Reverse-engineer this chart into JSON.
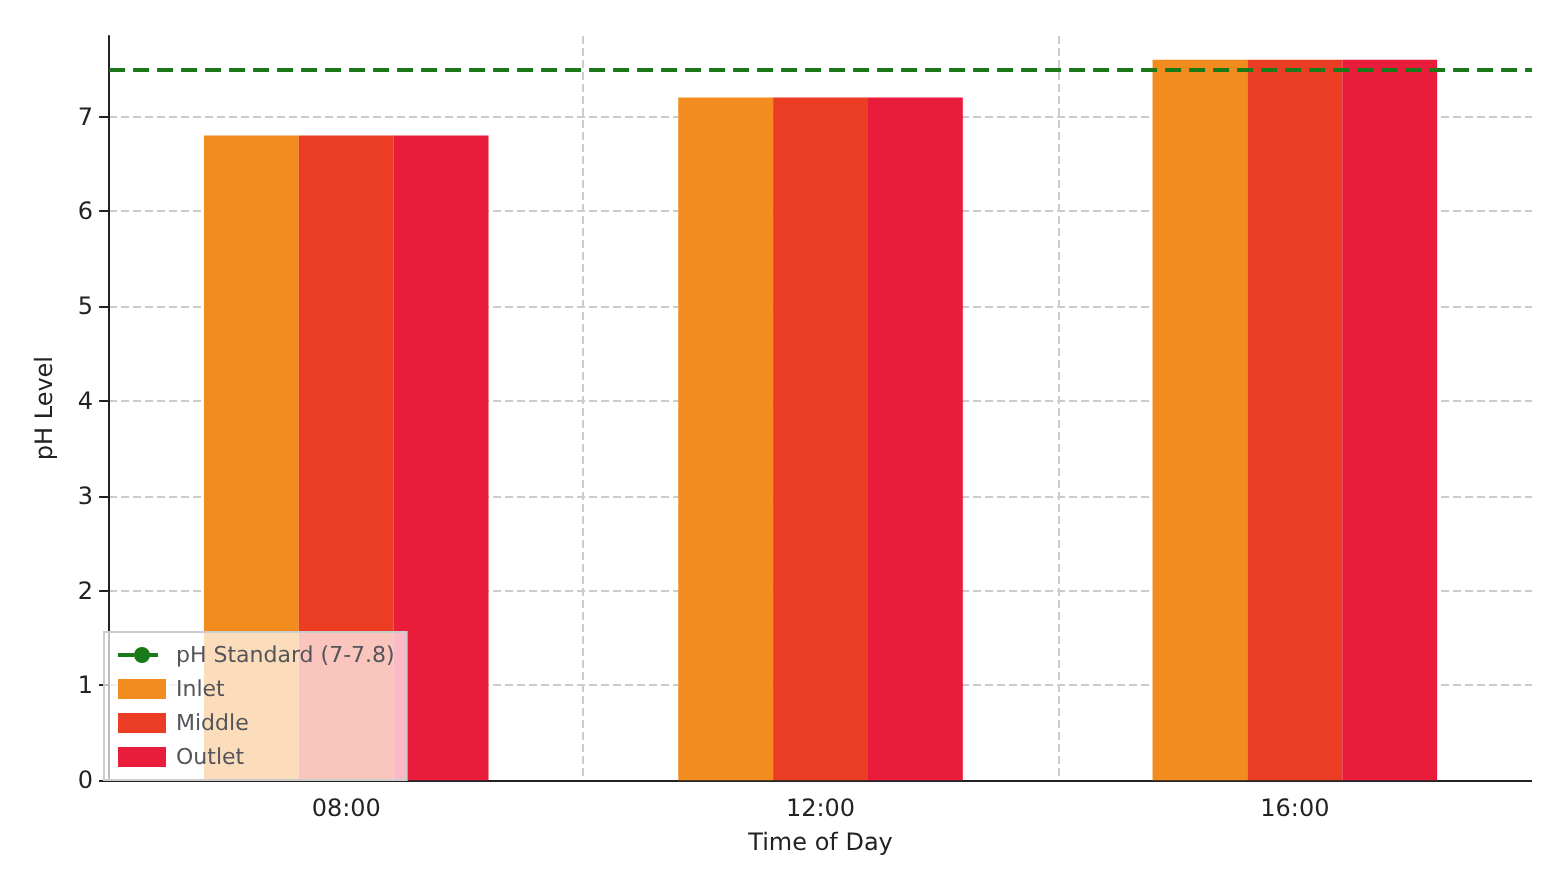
{
  "chart_data": {
    "type": "bar",
    "xlabel": "Time of Day",
    "ylabel": "pH Level",
    "categories": [
      "08:00",
      "12:00",
      "16:00"
    ],
    "series": [
      {
        "name": "Inlet",
        "color": "#f28c1e",
        "values": [
          6.8,
          7.2,
          7.6
        ]
      },
      {
        "name": "Middle",
        "color": "#ea3d24",
        "values": [
          6.8,
          7.2,
          7.6
        ]
      },
      {
        "name": "Outlet",
        "color": "#e91c3c",
        "values": [
          6.8,
          7.2,
          7.6
        ]
      }
    ],
    "ylim": [
      0,
      7.85
    ],
    "yticks": [
      0,
      1,
      2,
      3,
      4,
      5,
      6,
      7
    ],
    "grid": true,
    "legend": "bottom left",
    "ref_lines": [
      {
        "axis": "y",
        "value": 7.5,
        "label": "pH Standard (7-7.8)",
        "color": "#1a7a1a",
        "line_style": "dashed"
      }
    ]
  }
}
